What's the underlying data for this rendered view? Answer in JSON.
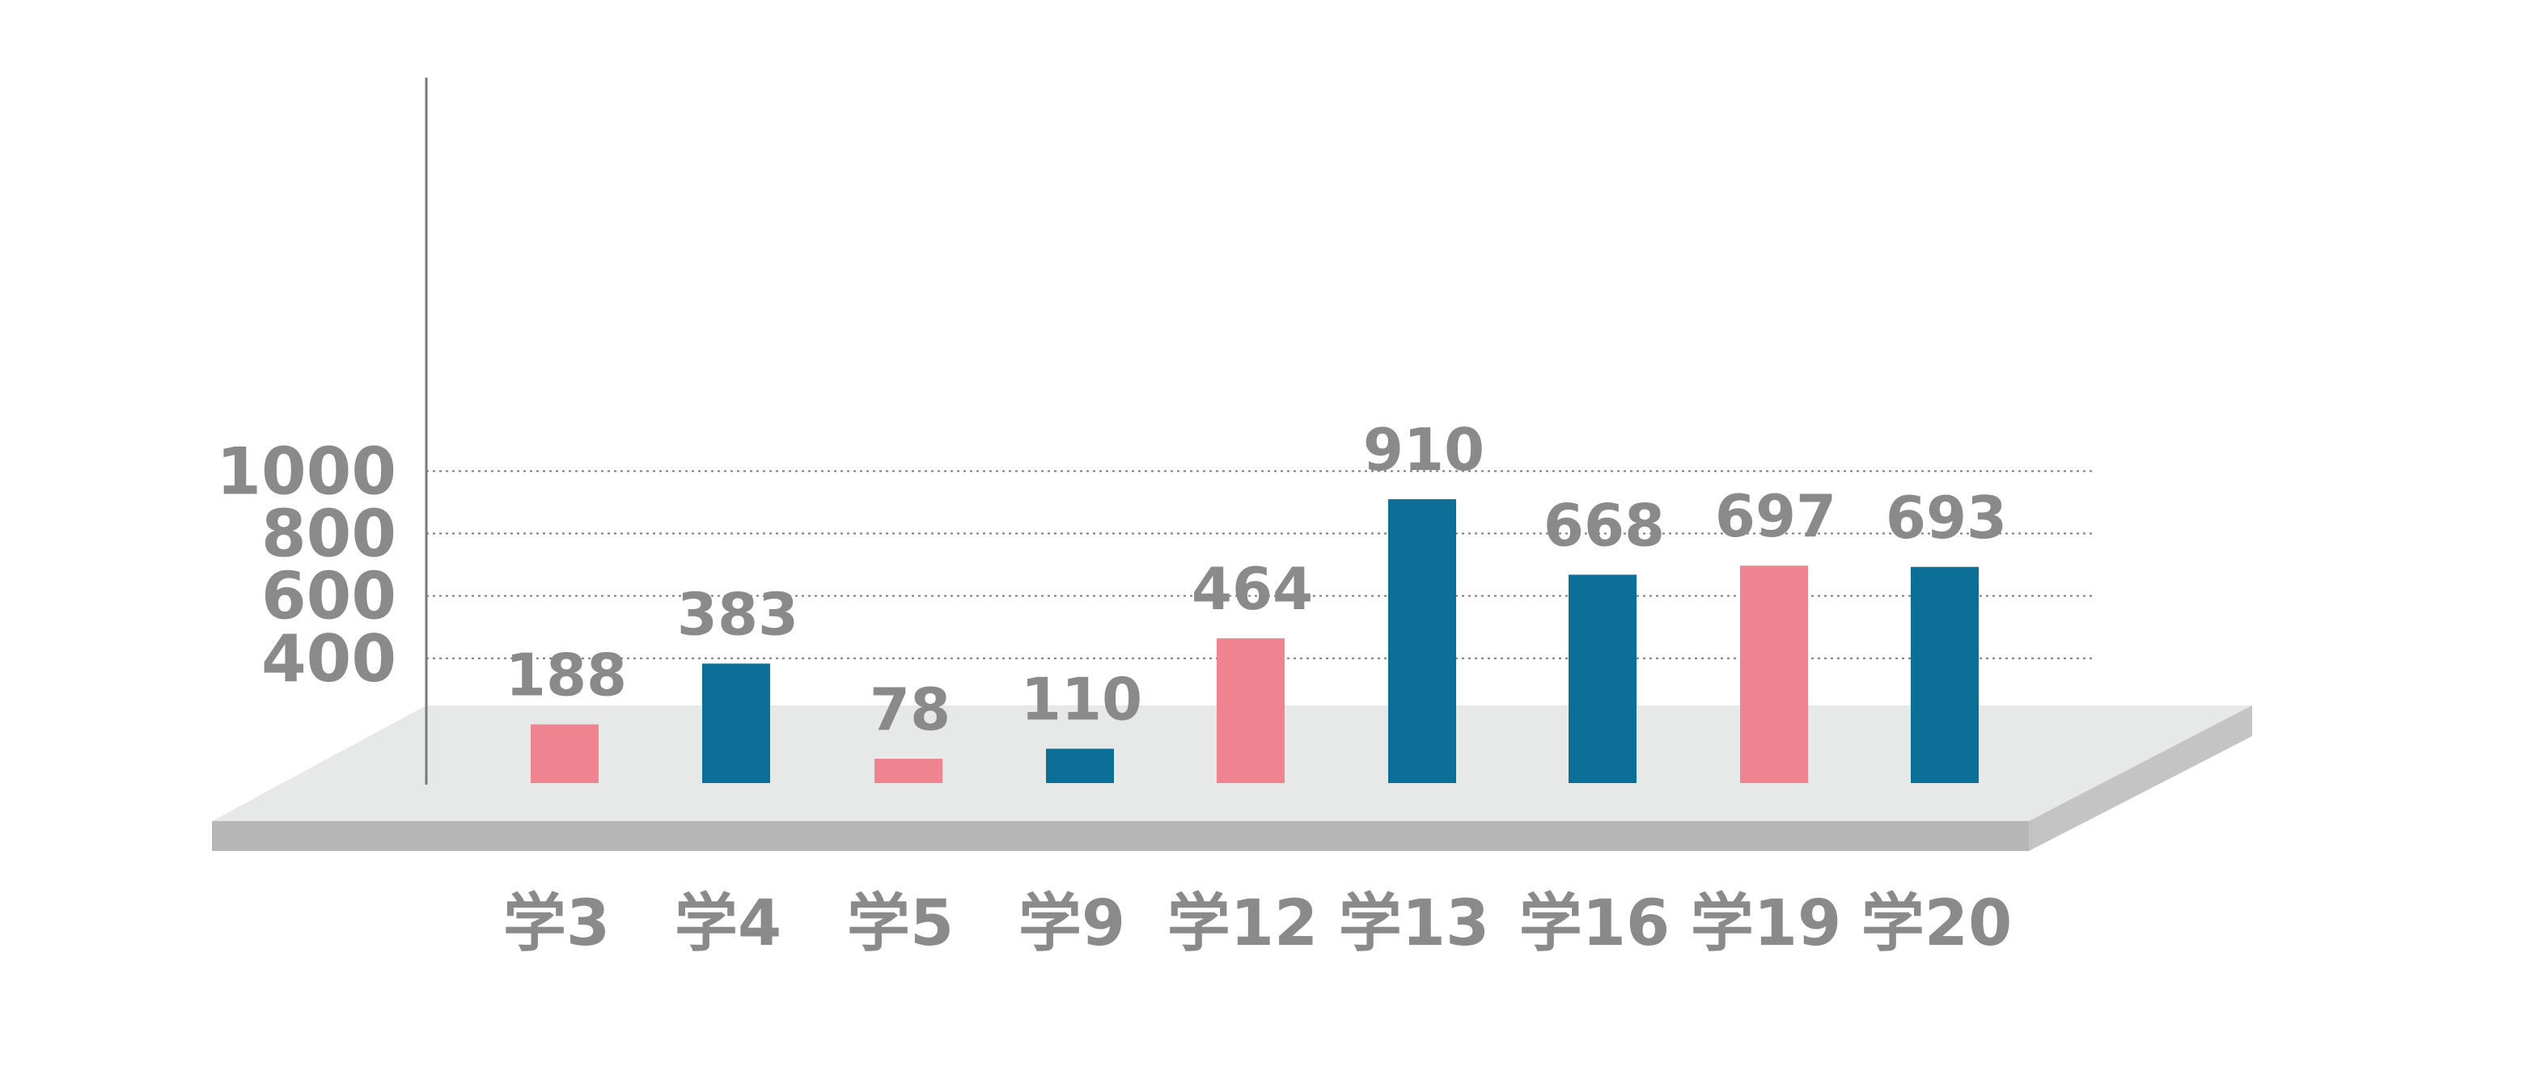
{
  "chart_data": {
    "type": "bar",
    "title": "",
    "xlabel": "",
    "ylabel": "",
    "categories": [
      "学3",
      "学4",
      "学5",
      "学9",
      "学12",
      "学13",
      "学16",
      "学19",
      "学20"
    ],
    "values": [
      188,
      383,
      78,
      110,
      464,
      910,
      668,
      697,
      693
    ],
    "bar_colors": [
      "#ef8390",
      "#0c6f98",
      "#ef8390",
      "#0c6f98",
      "#ef8390",
      "#0c6f98",
      "#0c6f98",
      "#ef8390",
      "#0c6f98"
    ],
    "y_ticks": [
      "400",
      "600",
      "800",
      "1000"
    ],
    "grid": true,
    "grid_style": "dotted",
    "platform_3d": true
  },
  "colors": {
    "pink": "#ef8390",
    "blue": "#0c6f98",
    "platform_top": "#e7e8e8",
    "platform_side": "#b6b7b6",
    "platform_side_dark": "#c4c4c4",
    "text": "#8a8a8a",
    "grid": "#7a7a7a",
    "axis": "#7a7a7a"
  }
}
